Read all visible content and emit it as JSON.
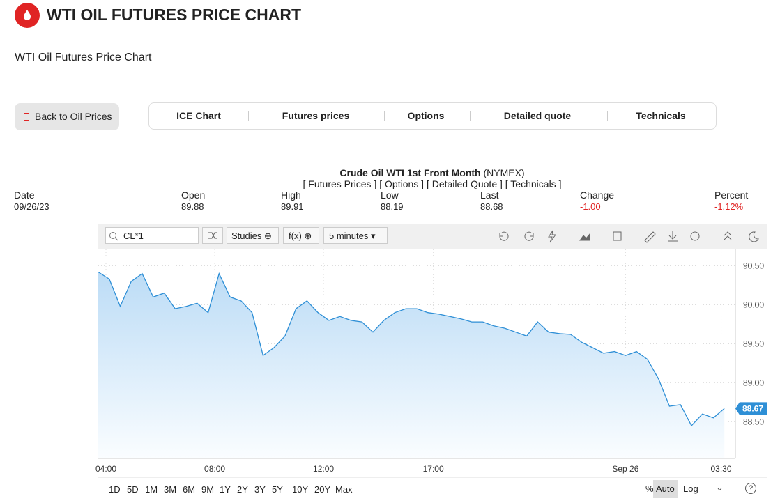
{
  "header": {
    "title": "WTI OIL FUTURES PRICE CHART",
    "subtitle": "WTI Oil Futures Price Chart"
  },
  "nav": {
    "back": "Back to Oil Prices",
    "tabs": [
      "ICE Chart",
      "Futures prices",
      "Options",
      "Detailed quote",
      "Technicals"
    ]
  },
  "quote": {
    "title": "Crude Oil WTI 1st Front Month",
    "exchange": "(NYMEX)",
    "links": [
      "[ Futures Prices ]",
      "[ Options ]",
      "[ Detailed Quote ]",
      "[ Technicals ]"
    ],
    "columns": [
      {
        "label": "Date",
        "value": "09/26/23"
      },
      {
        "label": "Open",
        "value": "89.88"
      },
      {
        "label": "High",
        "value": "89.91"
      },
      {
        "label": "Low",
        "value": "88.19"
      },
      {
        "label": "Last",
        "value": "88.68"
      },
      {
        "label": "Change",
        "value": "-1.00"
      },
      {
        "label": "Percent",
        "value": "-1.12%"
      }
    ]
  },
  "toolbar": {
    "symbol": "CL*1",
    "studies": "Studies",
    "fx": "f(x)",
    "interval": "5 minutes"
  },
  "ranges": [
    "1D",
    "5D",
    "1M",
    "3M",
    "6M",
    "9M",
    "1Y",
    "2Y",
    "3Y",
    "5Y",
    "10Y",
    "20Y",
    "Max"
  ],
  "scale_options": [
    "%",
    "Auto",
    "Log"
  ],
  "chart_data": {
    "type": "line",
    "color": "#2e8fd6",
    "values": [
      90.42,
      90.33,
      89.98,
      90.3,
      90.4,
      90.1,
      90.15,
      89.95,
      89.98,
      90.02,
      89.9,
      90.4,
      90.1,
      90.05,
      89.9,
      89.35,
      89.45,
      89.6,
      89.95,
      90.05,
      89.9,
      89.8,
      89.85,
      89.8,
      89.78,
      89.65,
      89.8,
      89.9,
      89.95,
      89.95,
      89.9,
      89.88,
      89.85,
      89.82,
      89.78,
      89.78,
      89.73,
      89.7,
      89.65,
      89.6,
      89.78,
      89.65,
      89.63,
      89.62,
      89.52,
      89.45,
      89.38,
      89.4,
      89.35,
      89.4,
      89.3,
      89.05,
      88.7,
      88.72,
      88.45,
      88.6,
      88.55,
      88.67
    ],
    "xlim": [
      0,
      58
    ],
    "xticks": [
      {
        "value": 0.7,
        "label": "04:00"
      },
      {
        "value": 10.6,
        "label": "08:00"
      },
      {
        "value": 20.5,
        "label": "12:00"
      },
      {
        "value": 30.5,
        "label": "17:00"
      },
      {
        "value": 48,
        "label": "Sep 26"
      },
      {
        "value": 56.7,
        "label": "03:30"
      }
    ],
    "ylim": [
      88.03,
      90.71
    ],
    "yticks": [
      {
        "value": 88.5,
        "label": "88.50"
      },
      {
        "value": 89,
        "label": "89.00"
      },
      {
        "value": 89.5,
        "label": "89.50"
      },
      {
        "value": 90,
        "label": "90.00"
      },
      {
        "value": 90.5,
        "label": "90.50"
      }
    ],
    "grid": true
  }
}
